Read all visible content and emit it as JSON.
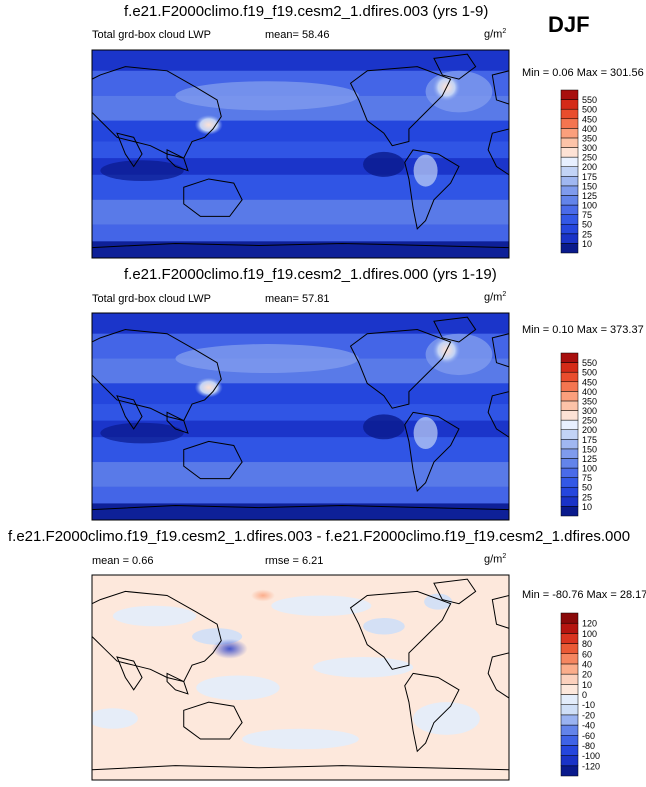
{
  "season": "DJF",
  "unit_base": "g/m",
  "unit_exp": "2",
  "chart_data": [
    {
      "type": "heatmap",
      "title": "f.e21.F2000climo.f19_f19.cesm2_1.dfires.003 (yrs 1-9)",
      "left_label": "Total grd-box cloud LWP",
      "mean_text": "mean=  58.46",
      "minmax_text": "Min =   0.06 Max = 301.56",
      "min": 0.06,
      "max": 301.56,
      "mean": 58.46,
      "colorbar": {
        "levels": [
          10,
          25,
          50,
          75,
          100,
          125,
          150,
          175,
          200,
          250,
          300,
          350,
          400,
          450,
          500,
          550
        ],
        "colors": [
          "#0a1a8c",
          "#1a33c7",
          "#2546dd",
          "#3358e6",
          "#4a6be9",
          "#6384ea",
          "#7f9bed",
          "#a0b7f1",
          "#c2d3f6",
          "#e8f0ff",
          "#fde2d5",
          "#fcc3a8",
          "#fb9f7c",
          "#f47550",
          "#e94d2d",
          "#d42b18",
          "#a80f0e"
        ]
      }
    },
    {
      "type": "heatmap",
      "title": "f.e21.F2000climo.f19_f19.cesm2_1.dfires.000 (yrs 1-19)",
      "left_label": "Total grd-box cloud LWP",
      "mean_text": "mean=  57.81",
      "minmax_text": "Min =   0.10 Max = 373.37",
      "min": 0.1,
      "max": 373.37,
      "mean": 57.81,
      "colorbar": {
        "levels": [
          10,
          25,
          50,
          75,
          100,
          125,
          150,
          175,
          200,
          250,
          300,
          350,
          400,
          450,
          500,
          550
        ],
        "colors": [
          "#0a1a8c",
          "#1a33c7",
          "#2546dd",
          "#3358e6",
          "#4a6be9",
          "#6384ea",
          "#7f9bed",
          "#a0b7f1",
          "#c2d3f6",
          "#e8f0ff",
          "#fde2d5",
          "#fcc3a8",
          "#fb9f7c",
          "#f47550",
          "#e94d2d",
          "#d42b18",
          "#a80f0e"
        ]
      }
    },
    {
      "type": "heatmap",
      "title": "f.e21.F2000climo.f19_f19.cesm2_1.dfires.003 - f.e21.F2000climo.f19_f19.cesm2_1.dfires.000",
      "mean_text": "mean =   0.66",
      "rmse_text": "rmse =   6.21",
      "minmax_text": "Min = -80.76 Max =  28.17",
      "min": -80.76,
      "max": 28.17,
      "mean": 0.66,
      "rmse": 6.21,
      "colorbar": {
        "levels": [
          -120,
          -100,
          -80,
          -60,
          -40,
          -20,
          -10,
          0,
          10,
          20,
          40,
          60,
          80,
          100,
          120
        ],
        "colors": [
          "#0a1a8c",
          "#1a33c7",
          "#2546dd",
          "#3f63e6",
          "#6384ea",
          "#9ab3f1",
          "#cfdff7",
          "#e3edfb",
          "#fde8dc",
          "#fcd1bd",
          "#fbad8b",
          "#f58660",
          "#ea5a36",
          "#d93420",
          "#b51510",
          "#8a0a0a"
        ]
      }
    }
  ]
}
